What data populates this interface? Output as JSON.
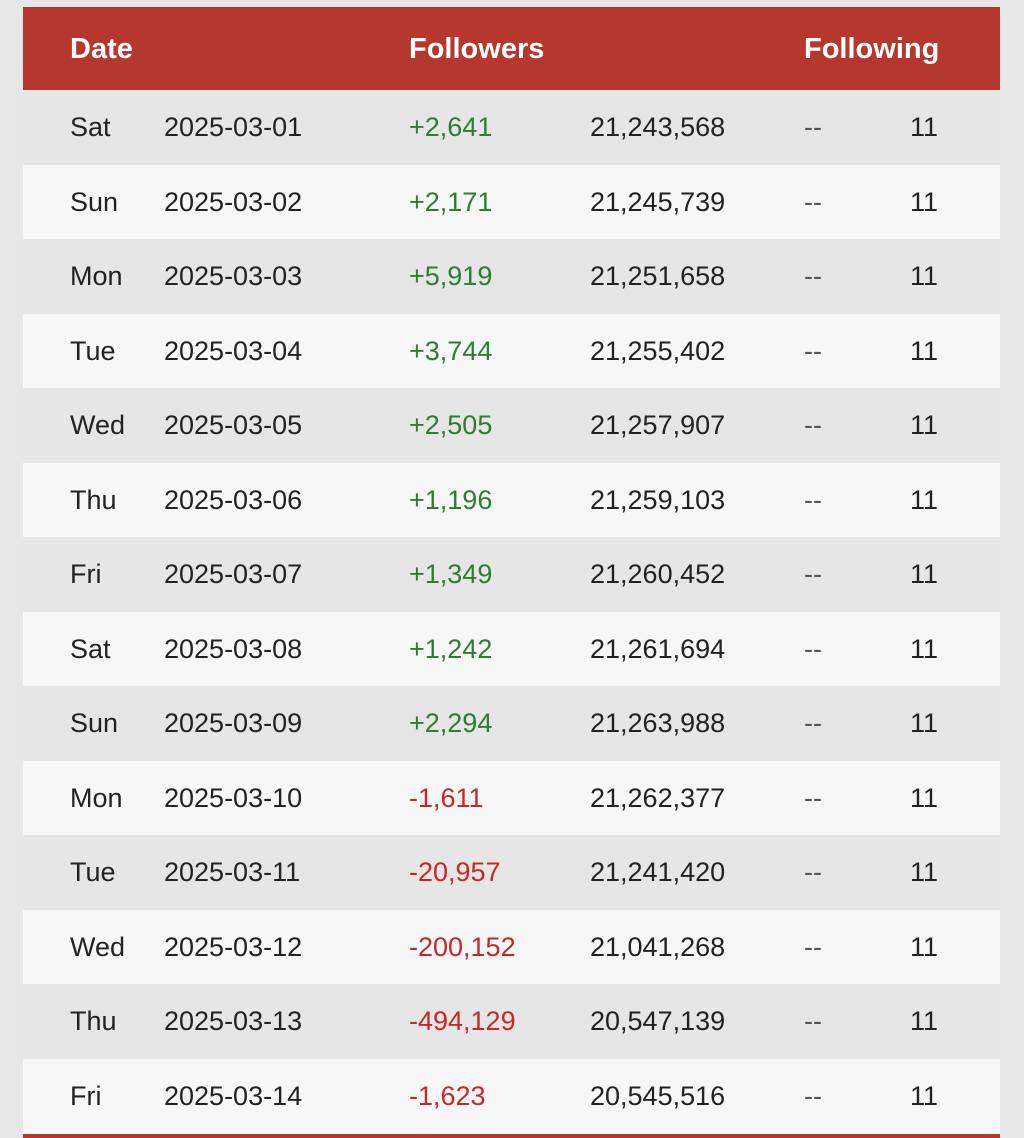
{
  "header": {
    "date_label": "Date",
    "followers_label": "Followers",
    "following_label": "Following"
  },
  "colors": {
    "header_bg": "#b5372d",
    "positive": "#2e7d32",
    "negative": "#c62828"
  },
  "rows": [
    {
      "day": "Sat",
      "date": "2025-03-01",
      "change": "+2,641",
      "total": "21,243,568",
      "following_change": "--",
      "following": "11"
    },
    {
      "day": "Sun",
      "date": "2025-03-02",
      "change": "+2,171",
      "total": "21,245,739",
      "following_change": "--",
      "following": "11"
    },
    {
      "day": "Mon",
      "date": "2025-03-03",
      "change": "+5,919",
      "total": "21,251,658",
      "following_change": "--",
      "following": "11"
    },
    {
      "day": "Tue",
      "date": "2025-03-04",
      "change": "+3,744",
      "total": "21,255,402",
      "following_change": "--",
      "following": "11"
    },
    {
      "day": "Wed",
      "date": "2025-03-05",
      "change": "+2,505",
      "total": "21,257,907",
      "following_change": "--",
      "following": "11"
    },
    {
      "day": "Thu",
      "date": "2025-03-06",
      "change": "+1,196",
      "total": "21,259,103",
      "following_change": "--",
      "following": "11"
    },
    {
      "day": "Fri",
      "date": "2025-03-07",
      "change": "+1,349",
      "total": "21,260,452",
      "following_change": "--",
      "following": "11"
    },
    {
      "day": "Sat",
      "date": "2025-03-08",
      "change": "+1,242",
      "total": "21,261,694",
      "following_change": "--",
      "following": "11"
    },
    {
      "day": "Sun",
      "date": "2025-03-09",
      "change": "+2,294",
      "total": "21,263,988",
      "following_change": "--",
      "following": "11"
    },
    {
      "day": "Mon",
      "date": "2025-03-10",
      "change": "-1,611",
      "total": "21,262,377",
      "following_change": "--",
      "following": "11"
    },
    {
      "day": "Tue",
      "date": "2025-03-11",
      "change": "-20,957",
      "total": "21,241,420",
      "following_change": "--",
      "following": "11"
    },
    {
      "day": "Wed",
      "date": "2025-03-12",
      "change": "-200,152",
      "total": "21,041,268",
      "following_change": "--",
      "following": "11"
    },
    {
      "day": "Thu",
      "date": "2025-03-13",
      "change": "-494,129",
      "total": "20,547,139",
      "following_change": "--",
      "following": "11"
    },
    {
      "day": "Fri",
      "date": "2025-03-14",
      "change": "-1,623",
      "total": "20,545,516",
      "following_change": "--",
      "following": "11"
    }
  ]
}
